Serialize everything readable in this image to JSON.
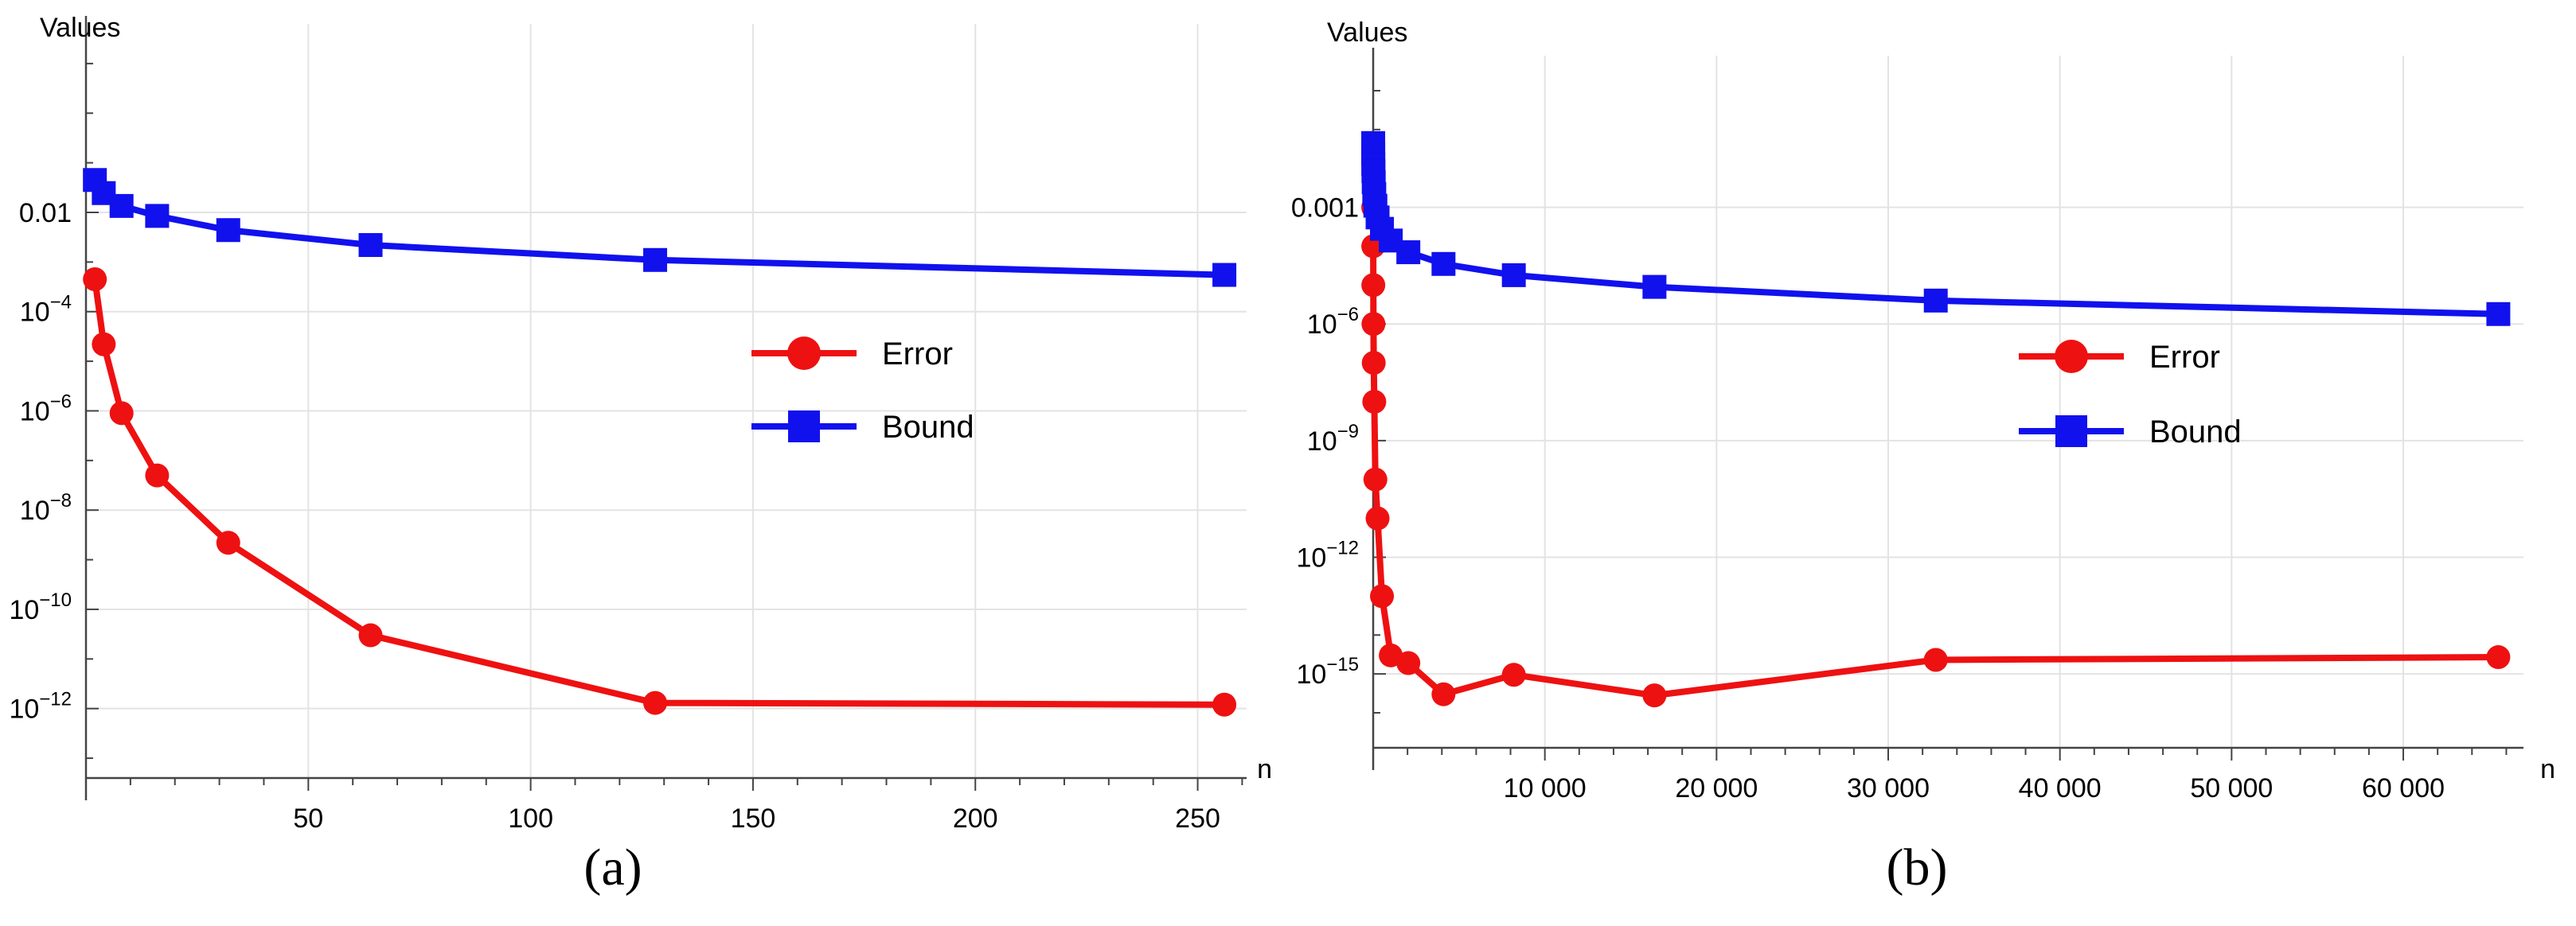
{
  "chart_data": [
    {
      "type": "line",
      "panel_label": "(a)",
      "xlabel": "n",
      "ylabel": "Values",
      "log_y": true,
      "xlim": [
        0,
        261
      ],
      "ylim_log10": [
        -13.4,
        1.8
      ],
      "grid": true,
      "legend_position": "right-middle",
      "x_ticks": [
        {
          "v": 50,
          "label": "50"
        },
        {
          "v": 100,
          "label": "100"
        },
        {
          "v": 150,
          "label": "150"
        },
        {
          "v": 200,
          "label": "200"
        },
        {
          "v": 250,
          "label": "250"
        }
      ],
      "y_ticks": [
        {
          "exp": -2,
          "base": "0.01",
          "sup": ""
        },
        {
          "exp": -4,
          "base": "10",
          "sup": "−4"
        },
        {
          "exp": -6,
          "base": "10",
          "sup": "−6"
        },
        {
          "exp": -8,
          "base": "10",
          "sup": "−8"
        },
        {
          "exp": -10,
          "base": "10",
          "sup": "−10"
        },
        {
          "exp": -12,
          "base": "10",
          "sup": "−12"
        }
      ],
      "series": [
        {
          "name": "Error",
          "color": "#ee1111",
          "marker": "circle",
          "x": [
            2,
            4,
            8,
            16,
            32,
            64,
            128,
            256
          ],
          "y": [
            0.00045,
            2.2e-05,
            9e-07,
            5e-08,
            2.2e-09,
            3e-11,
            1.3e-12,
            1.2e-12
          ]
        },
        {
          "name": "Bound",
          "color": "#1111ee",
          "marker": "square",
          "x": [
            2,
            4,
            8,
            16,
            32,
            64,
            128,
            256
          ],
          "y": [
            0.045,
            0.0245,
            0.0135,
            0.0085,
            0.0044,
            0.0022,
            0.0011,
            0.00055
          ]
        }
      ]
    },
    {
      "type": "line",
      "panel_label": "(b)",
      "xlabel": "n",
      "ylabel": "Values",
      "log_y": true,
      "xlim": [
        0,
        67000
      ],
      "ylim_log10": [
        -16.9,
        0.9
      ],
      "grid": true,
      "legend_position": "right-middle",
      "x_ticks": [
        {
          "v": 10000,
          "label": "10 000"
        },
        {
          "v": 20000,
          "label": "20 000"
        },
        {
          "v": 30000,
          "label": "30 000"
        },
        {
          "v": 40000,
          "label": "40 000"
        },
        {
          "v": 50000,
          "label": "50 000"
        },
        {
          "v": 60000,
          "label": "60 000"
        }
      ],
      "y_ticks": [
        {
          "exp": -3,
          "base": "0.001",
          "sup": ""
        },
        {
          "exp": -6,
          "base": "10",
          "sup": "−6"
        },
        {
          "exp": -9,
          "base": "10",
          "sup": "−9"
        },
        {
          "exp": -12,
          "base": "10",
          "sup": "−12"
        },
        {
          "exp": -15,
          "base": "10",
          "sup": "−15"
        }
      ],
      "series": [
        {
          "name": "Error",
          "color": "#ee1111",
          "marker": "circle",
          "x": [
            2,
            4,
            8,
            16,
            32,
            64,
            128,
            256,
            512,
            1024,
            2048,
            4096,
            8192,
            16384,
            32768,
            65536
          ],
          "y": [
            0.001,
            0.0001,
            1e-05,
            1e-06,
            1e-07,
            1e-08,
            1e-10,
            1e-11,
            1e-13,
            3e-15,
            1.9e-15,
            3e-16,
            9.5e-16,
            2.8e-16,
            2.3e-15,
            2.7e-15
          ]
        },
        {
          "name": "Bound",
          "color": "#1111ee",
          "marker": "square",
          "x": [
            2,
            4,
            8,
            16,
            32,
            64,
            128,
            256,
            512,
            1024,
            2048,
            4096,
            8192,
            16384,
            32768,
            65536
          ],
          "y": [
            0.045,
            0.024,
            0.013,
            0.0085,
            0.0044,
            0.0022,
            0.0011,
            0.00055,
            0.00028,
            0.00014,
            7e-05,
            3.5e-05,
            1.8e-05,
            9e-06,
            4e-06,
            1.8e-06
          ]
        }
      ]
    }
  ]
}
